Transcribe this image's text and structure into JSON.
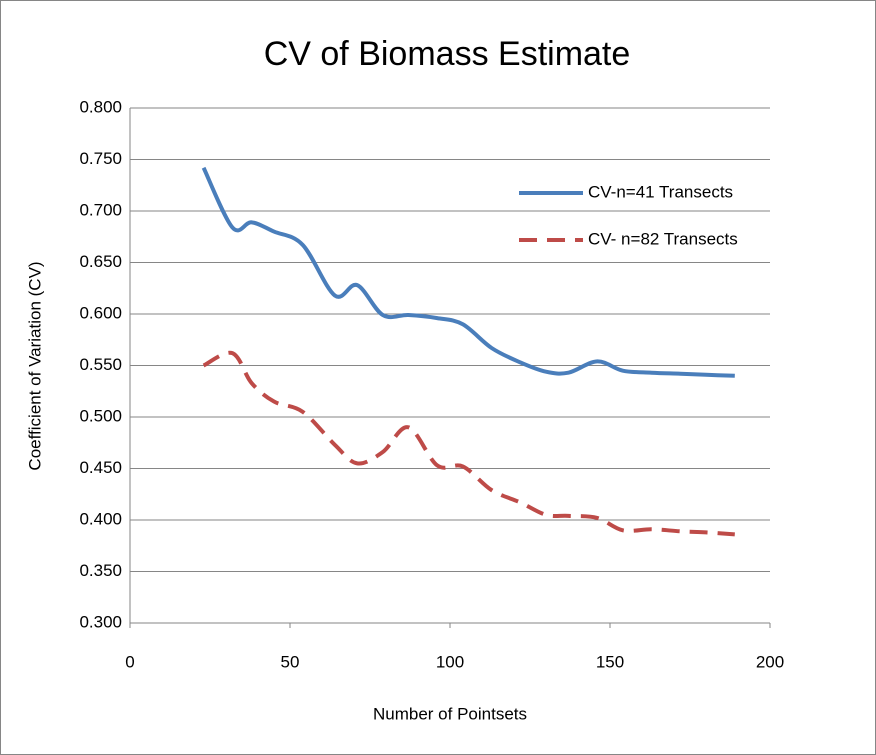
{
  "chart_data": {
    "type": "line",
    "title": "CV of Biomass Estimate",
    "xlabel": "Number of Pointsets",
    "ylabel": "Coefficient of Variation  (CV)",
    "x": [
      23,
      32,
      38,
      45,
      54,
      64,
      71,
      79,
      87,
      96,
      104,
      113,
      122,
      130,
      137,
      146,
      154,
      163,
      172,
      180,
      189
    ],
    "series": [
      {
        "name": "CV-n=41 Transects",
        "color": "#4a7ebb",
        "dash": false,
        "values": [
          0.742,
          0.684,
          0.689,
          0.68,
          0.667,
          0.618,
          0.628,
          0.599,
          0.599,
          0.596,
          0.59,
          0.567,
          0.553,
          0.544,
          0.543,
          0.554,
          0.545,
          0.543,
          0.542,
          0.541,
          0.54
        ]
      },
      {
        "name": "CV- n=82 Transects",
        "color": "#be4b48",
        "dash": true,
        "values": [
          0.55,
          0.562,
          0.533,
          0.515,
          0.505,
          0.473,
          0.455,
          0.466,
          0.49,
          0.453,
          0.452,
          0.429,
          0.417,
          0.405,
          0.404,
          0.402,
          0.39,
          0.391,
          0.389,
          0.388,
          0.386
        ]
      }
    ],
    "xlim": [
      0,
      200
    ],
    "xticks": [
      0,
      50,
      100,
      150,
      200
    ],
    "ylim": [
      0.3,
      0.8
    ],
    "yticks": [
      {
        "value": 0.3,
        "label": "0.300"
      },
      {
        "value": 0.35,
        "label": "0.350"
      },
      {
        "value": 0.4,
        "label": "0.400"
      },
      {
        "value": 0.45,
        "label": "0.450"
      },
      {
        "value": 0.5,
        "label": "0.500"
      },
      {
        "value": 0.55,
        "label": "0.550"
      },
      {
        "value": 0.6,
        "label": "0.600"
      },
      {
        "value": 0.65,
        "label": "0.650"
      },
      {
        "value": 0.7,
        "label": "0.700"
      },
      {
        "value": 0.75,
        "label": "0.750"
      },
      {
        "value": 0.8,
        "label": "0.800"
      }
    ],
    "grid": true,
    "legend": "upper right"
  }
}
